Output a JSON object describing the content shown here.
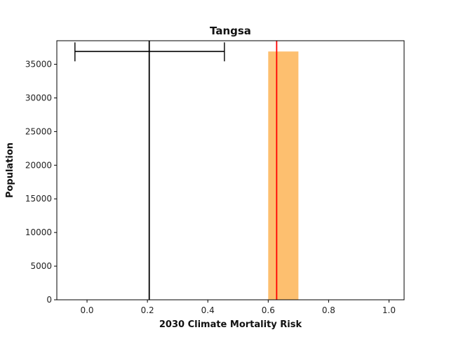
{
  "chart_data": {
    "type": "bar",
    "title": "Tangsa",
    "xlabel": "2030 Climate Mortality Risk",
    "ylabel": "Population",
    "xlim": [
      -0.1,
      1.05
    ],
    "ylim": [
      0,
      38500
    ],
    "xticks": [
      0.0,
      0.2,
      0.4,
      0.6,
      0.8,
      1.0
    ],
    "xtick_labels": [
      "0.0",
      "0.2",
      "0.4",
      "0.6",
      "0.8",
      "1.0"
    ],
    "yticks": [
      0,
      5000,
      10000,
      15000,
      20000,
      25000,
      30000,
      35000
    ],
    "ytick_labels": [
      "0",
      "5000",
      "10000",
      "15000",
      "20000",
      "25000",
      "30000",
      "35000"
    ],
    "grid": false,
    "bars": [
      {
        "x_start": 0.6,
        "x_end": 0.7,
        "value": 36900,
        "color": "#fdbf6f"
      }
    ],
    "vertical_lines": [
      {
        "x": 0.206,
        "color": "#000000"
      },
      {
        "x": 0.628,
        "color": "#ff0000"
      }
    ],
    "error_bar": {
      "center": 0.206,
      "low": -0.04,
      "high": 0.455,
      "y": 36900,
      "color": "#000000"
    }
  }
}
